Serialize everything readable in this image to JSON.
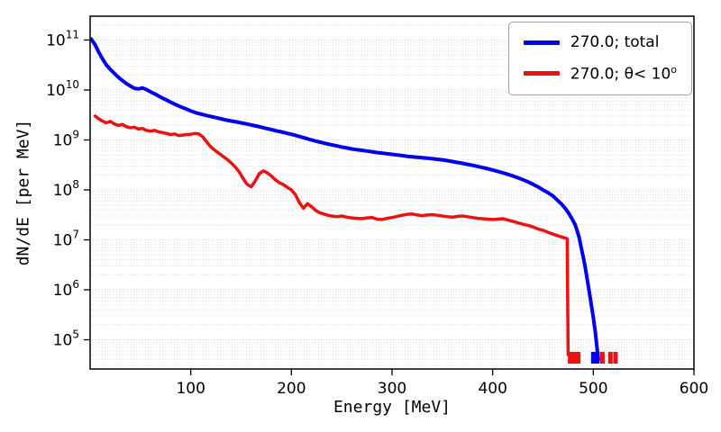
{
  "chart_data": {
    "type": "line",
    "title": "",
    "xlabel": "Energy [MeV]",
    "ylabel": "dN/dE [per MeV]",
    "xlim": [
      0,
      600
    ],
    "ylim": [
      26000,
      300000000000.0
    ],
    "yscale": "log",
    "grid": "horizontal dotted log minor+major gridlines",
    "x_ticks": [
      100,
      200,
      300,
      400,
      500,
      600
    ],
    "y_tick_exponents": [
      5,
      6,
      7,
      8,
      9,
      10,
      11
    ],
    "legend": {
      "position": "upper right",
      "entries": [
        {
          "label": "270.0; total",
          "label_main": "270.0; total",
          "label_sup": "",
          "color": "#0000ee"
        },
        {
          "label": "270.0; θ< 10^o",
          "label_main": "270.0; θ< 10",
          "label_sup": "o",
          "color": "#ee1111"
        }
      ]
    },
    "series": [
      {
        "name": "270.0; total",
        "color": "#0000ee",
        "linewidth": 4,
        "points": [
          [
            1,
            105000000000.0
          ],
          [
            5,
            80000000000.0
          ],
          [
            8,
            60000000000.0
          ],
          [
            12,
            43000000000.0
          ],
          [
            16,
            32000000000.0
          ],
          [
            20,
            26000000000.0
          ],
          [
            24,
            21500000000.0
          ],
          [
            28,
            18000000000.0
          ],
          [
            32,
            15500000000.0
          ],
          [
            36,
            13500000000.0
          ],
          [
            40,
            12000000000.0
          ],
          [
            44,
            10800000000.0
          ],
          [
            48,
            10500000000.0
          ],
          [
            52,
            11000000000.0
          ],
          [
            56,
            10200000000.0
          ],
          [
            60,
            9200000000.0
          ],
          [
            65,
            8200000000.0
          ],
          [
            70,
            7200000000.0
          ],
          [
            75,
            6400000000.0
          ],
          [
            80,
            5700000000.0
          ],
          [
            85,
            5100000000.0
          ],
          [
            90,
            4600000000.0
          ],
          [
            95,
            4200000000.0
          ],
          [
            100,
            3800000000.0
          ],
          [
            105,
            3500000000.0
          ],
          [
            110,
            3300000000.0
          ],
          [
            115,
            3100000000.0
          ],
          [
            120,
            2950000000.0
          ],
          [
            125,
            2800000000.0
          ],
          [
            130,
            2650000000.0
          ],
          [
            135,
            2500000000.0
          ],
          [
            140,
            2400000000.0
          ],
          [
            145,
            2300000000.0
          ],
          [
            150,
            2200000000.0
          ],
          [
            155,
            2100000000.0
          ],
          [
            160,
            2000000000.0
          ],
          [
            165,
            1900000000.0
          ],
          [
            170,
            1800000000.0
          ],
          [
            175,
            1700000000.0
          ],
          [
            180,
            1620000000.0
          ],
          [
            185,
            1520000000.0
          ],
          [
            190,
            1450000000.0
          ],
          [
            195,
            1370000000.0
          ],
          [
            200,
            1300000000.0
          ],
          [
            205,
            1220000000.0
          ],
          [
            210,
            1140000000.0
          ],
          [
            215,
            1070000000.0
          ],
          [
            220,
            1000000000.0
          ],
          [
            225,
            940000000.0
          ],
          [
            230,
            890000000.0
          ],
          [
            235,
            840000000.0
          ],
          [
            240,
            800000000.0
          ],
          [
            245,
            760000000.0
          ],
          [
            250,
            720000000.0
          ],
          [
            255,
            690000000.0
          ],
          [
            260,
            660000000.0
          ],
          [
            265,
            640000000.0
          ],
          [
            270,
            620000000.0
          ],
          [
            275,
            600000000.0
          ],
          [
            280,
            580000000.0
          ],
          [
            285,
            560000000.0
          ],
          [
            290,
            545000000.0
          ],
          [
            295,
            530000000.0
          ],
          [
            300,
            515000000.0
          ],
          [
            305,
            500000000.0
          ],
          [
            310,
            485000000.0
          ],
          [
            315,
            470000000.0
          ],
          [
            320,
            460000000.0
          ],
          [
            325,
            450000000.0
          ],
          [
            330,
            440000000.0
          ],
          [
            335,
            430000000.0
          ],
          [
            340,
            420000000.0
          ],
          [
            345,
            410000000.0
          ],
          [
            350,
            400000000.0
          ],
          [
            355,
            385000000.0
          ],
          [
            360,
            370000000.0
          ],
          [
            365,
            355000000.0
          ],
          [
            370,
            340000000.0
          ],
          [
            375,
            325000000.0
          ],
          [
            380,
            310000000.0
          ],
          [
            385,
            295000000.0
          ],
          [
            390,
            280000000.0
          ],
          [
            395,
            265000000.0
          ],
          [
            400,
            250000000.0
          ],
          [
            405,
            235000000.0
          ],
          [
            410,
            220000000.0
          ],
          [
            415,
            205000000.0
          ],
          [
            420,
            190000000.0
          ],
          [
            425,
            175000000.0
          ],
          [
            430,
            160000000.0
          ],
          [
            435,
            145000000.0
          ],
          [
            440,
            130000000.0
          ],
          [
            445,
            115000000.0
          ],
          [
            450,
            100000000.0
          ],
          [
            455,
            88000000.0
          ],
          [
            460,
            75000000.0
          ],
          [
            464,
            63000000.0
          ],
          [
            468,
            53000000.0
          ],
          [
            472,
            43000000.0
          ],
          [
            476,
            33000000.0
          ],
          [
            479,
            26000000.0
          ],
          [
            482,
            20000000.0
          ],
          [
            484,
            15000000.0
          ],
          [
            486,
            11000000.0
          ],
          [
            488,
            7000000.0
          ],
          [
            490,
            4500000.0
          ],
          [
            492,
            2800000.0
          ],
          [
            494,
            1600000.0
          ],
          [
            496,
            900000.0
          ],
          [
            498,
            500000.0
          ],
          [
            500,
            280000.0
          ],
          [
            502,
            140000.0
          ],
          [
            503,
            90000.0
          ],
          [
            504,
            60000.0
          ],
          [
            505,
            40000.0
          ]
        ],
        "floor_marks": [
          500,
          504
        ]
      },
      {
        "name": "270.0; θ< 10^o",
        "color": "#ee1111",
        "linewidth": 3.5,
        "points": [
          [
            5,
            3000000000.0
          ],
          [
            8,
            2700000000.0
          ],
          [
            12,
            2400000000.0
          ],
          [
            16,
            2200000000.0
          ],
          [
            20,
            2350000000.0
          ],
          [
            24,
            2100000000.0
          ],
          [
            28,
            1950000000.0
          ],
          [
            32,
            2050000000.0
          ],
          [
            36,
            1850000000.0
          ],
          [
            40,
            1750000000.0
          ],
          [
            44,
            1800000000.0
          ],
          [
            48,
            1650000000.0
          ],
          [
            52,
            1700000000.0
          ],
          [
            56,
            1550000000.0
          ],
          [
            60,
            1500000000.0
          ],
          [
            64,
            1550000000.0
          ],
          [
            68,
            1450000000.0
          ],
          [
            72,
            1400000000.0
          ],
          [
            76,
            1350000000.0
          ],
          [
            80,
            1280000000.0
          ],
          [
            84,
            1320000000.0
          ],
          [
            88,
            1220000000.0
          ],
          [
            92,
            1250000000.0
          ],
          [
            96,
            1280000000.0
          ],
          [
            100,
            1300000000.0
          ],
          [
            104,
            1350000000.0
          ],
          [
            108,
            1320000000.0
          ],
          [
            112,
            1150000000.0
          ],
          [
            116,
            900000000.0
          ],
          [
            120,
            720000000.0
          ],
          [
            124,
            620000000.0
          ],
          [
            128,
            540000000.0
          ],
          [
            132,
            470000000.0
          ],
          [
            136,
            410000000.0
          ],
          [
            140,
            350000000.0
          ],
          [
            144,
            290000000.0
          ],
          [
            148,
            230000000.0
          ],
          [
            152,
            170000000.0
          ],
          [
            156,
            130000000.0
          ],
          [
            160,
            115000000.0
          ],
          [
            164,
            150000000.0
          ],
          [
            168,
            210000000.0
          ],
          [
            172,
            240000000.0
          ],
          [
            176,
            220000000.0
          ],
          [
            180,
            190000000.0
          ],
          [
            184,
            160000000.0
          ],
          [
            188,
            140000000.0
          ],
          [
            192,
            128000000.0
          ],
          [
            196,
            112000000.0
          ],
          [
            200,
            100000000.0
          ],
          [
            204,
            80000000.0
          ],
          [
            208,
            55000000.0
          ],
          [
            212,
            43000000.0
          ],
          [
            216,
            53000000.0
          ],
          [
            220,
            46000000.0
          ],
          [
            224,
            39000000.0
          ],
          [
            228,
            35000000.0
          ],
          [
            232,
            33000000.0
          ],
          [
            236,
            31000000.0
          ],
          [
            240,
            30000000.0
          ],
          [
            245,
            29000000.0
          ],
          [
            250,
            30000000.0
          ],
          [
            255,
            28500000.0
          ],
          [
            260,
            27500000.0
          ],
          [
            265,
            27000000.0
          ],
          [
            270,
            26500000.0
          ],
          [
            275,
            27500000.0
          ],
          [
            280,
            28000000.0
          ],
          [
            285,
            26000000.0
          ],
          [
            290,
            25500000.0
          ],
          [
            295,
            27000000.0
          ],
          [
            300,
            28000000.0
          ],
          [
            305,
            29500000.0
          ],
          [
            310,
            31000000.0
          ],
          [
            315,
            32500000.0
          ],
          [
            320,
            33000000.0
          ],
          [
            325,
            31500000.0
          ],
          [
            330,
            30500000.0
          ],
          [
            335,
            31500000.0
          ],
          [
            340,
            32000000.0
          ],
          [
            345,
            31000000.0
          ],
          [
            350,
            30000000.0
          ],
          [
            355,
            29000000.0
          ],
          [
            360,
            28500000.0
          ],
          [
            365,
            29500000.0
          ],
          [
            370,
            30000000.0
          ],
          [
            375,
            29000000.0
          ],
          [
            380,
            28000000.0
          ],
          [
            385,
            27000000.0
          ],
          [
            390,
            26500000.0
          ],
          [
            395,
            26000000.0
          ],
          [
            400,
            25500000.0
          ],
          [
            405,
            26000000.0
          ],
          [
            410,
            26500000.0
          ],
          [
            415,
            25000000.0
          ],
          [
            420,
            23500000.0
          ],
          [
            425,
            22000000.0
          ],
          [
            430,
            20500000.0
          ],
          [
            435,
            19500000.0
          ],
          [
            440,
            18200000.0
          ],
          [
            445,
            16500000.0
          ],
          [
            450,
            15500000.0
          ],
          [
            455,
            14200000.0
          ],
          [
            460,
            13000000.0
          ],
          [
            464,
            12200000.0
          ],
          [
            468,
            11500000.0
          ],
          [
            471,
            11000000.0
          ],
          [
            474,
            10500000.0
          ],
          [
            475,
            50000.0
          ]
        ],
        "floor_marks": [
          477,
          481,
          485,
          509,
          517,
          522
        ]
      }
    ]
  },
  "colors": {
    "frame": "#000000",
    "grid": "#cccccc",
    "background": "#ffffff",
    "blue_line": "#0000ee",
    "red_line": "#ee1111"
  }
}
